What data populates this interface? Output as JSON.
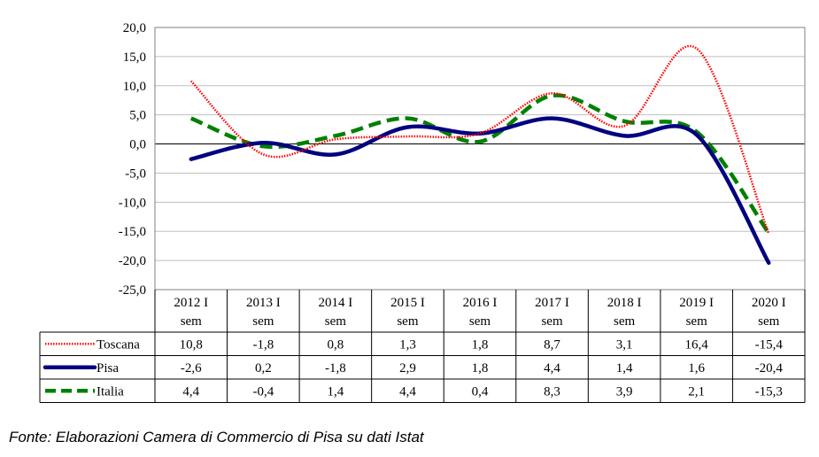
{
  "chart_data": {
    "type": "line",
    "categories": [
      [
        "2012 I",
        "sem"
      ],
      [
        "2013 I",
        "sem"
      ],
      [
        "2014 I",
        "sem"
      ],
      [
        "2015 I",
        "sem"
      ],
      [
        "2016 I",
        "sem"
      ],
      [
        "2017 I",
        "sem"
      ],
      [
        "2018 I",
        "sem"
      ],
      [
        "2019 I",
        "sem"
      ],
      [
        "2020 I",
        "sem"
      ]
    ],
    "ylim": [
      -25,
      20
    ],
    "yticks": [
      "20,0",
      "15,0",
      "10,0",
      "5,0",
      "0,0",
      "-5,0",
      "-10,0",
      "-15,0",
      "-20,0",
      "-25,0"
    ],
    "ytick_values": [
      20,
      15,
      10,
      5,
      0,
      -5,
      -10,
      -15,
      -20,
      -25
    ],
    "grid": true,
    "legend": "data-table",
    "series": [
      {
        "name": "Toscana",
        "values": [
          10.8,
          -1.8,
          0.8,
          1.3,
          1.8,
          8.7,
          3.1,
          16.4,
          -15.4
        ],
        "labels": [
          "10,8",
          "-1,8",
          "0,8",
          "1,3",
          "1,8",
          "8,7",
          "3,1",
          "16,4",
          "-15,4"
        ],
        "color": "#ff0000",
        "style": "dotted-red"
      },
      {
        "name": "Pisa",
        "values": [
          -2.6,
          0.2,
          -1.8,
          2.9,
          1.8,
          4.4,
          1.4,
          1.6,
          -20.4
        ],
        "labels": [
          "-2,6",
          "0,2",
          "-1,8",
          "2,9",
          "1,8",
          "4,4",
          "1,4",
          "1,6",
          "-20,4"
        ],
        "color": "#000080",
        "style": "solid-thick"
      },
      {
        "name": "Italia",
        "values": [
          4.4,
          -0.4,
          1.4,
          4.4,
          0.4,
          8.3,
          3.9,
          2.1,
          -15.3
        ],
        "labels": [
          "4,4",
          "-0,4",
          "1,4",
          "4,4",
          "0,4",
          "8,3",
          "3,9",
          "2,1",
          "-15,3"
        ],
        "color": "#008000",
        "style": "dashed-thick"
      }
    ]
  },
  "source": "Fonte: Elaborazioni Camera di Commercio di Pisa su dati Istat"
}
